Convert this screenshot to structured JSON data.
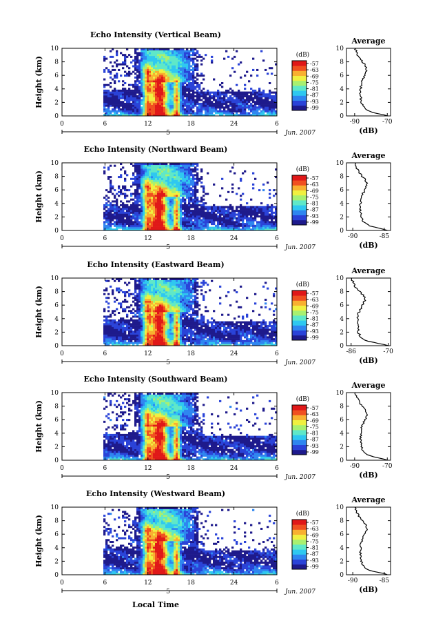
{
  "units_label": "(dB)",
  "average_title": "Average",
  "x_date_label": "Jun. 2007",
  "x_day_tick": "5",
  "colorbar_ticks": [
    "-57",
    "-63",
    "-69",
    "-75",
    "-81",
    "-87",
    "-93",
    "-99"
  ],
  "colors": {
    "scale": [
      "#1e1a8c",
      "#2a43d8",
      "#2f86f0",
      "#2fc8f0",
      "#5fe8c8",
      "#a8f070",
      "#f0f040",
      "#f8b030",
      "#f05020",
      "#e01818"
    ]
  },
  "chart_data": [
    {
      "type": "heatmap",
      "title": "Echo Intensity (Vertical Beam)",
      "ylabel": "Height (km)",
      "xlabel": "",
      "x_ticks": [
        "0",
        "6",
        "12",
        "18",
        "24",
        "6"
      ],
      "y_ticks": [
        "0",
        "2",
        "4",
        "6",
        "8",
        "10"
      ],
      "xlim": [
        0,
        30
      ],
      "ylim": [
        0,
        10
      ],
      "zlim": [
        -99,
        -57
      ],
      "average": {
        "xlabel": "(dB)",
        "x_ticks": [
          "-90",
          "-70"
        ],
        "xlim": [
          -95,
          -68
        ],
        "profile_peak_db": -70,
        "profile_low_db": -91
      }
    },
    {
      "type": "heatmap",
      "title": "Echo Intensity (Northward Beam)",
      "ylabel": "Height (km)",
      "xlabel": "",
      "x_ticks": [
        "0",
        "6",
        "12",
        "18",
        "24",
        "6"
      ],
      "y_ticks": [
        "0",
        "2",
        "4",
        "6",
        "8",
        "10"
      ],
      "xlim": [
        0,
        30
      ],
      "ylim": [
        0,
        10
      ],
      "zlim": [
        -99,
        -57
      ],
      "average": {
        "xlabel": "(dB)",
        "x_ticks": [
          "-90",
          "-85"
        ],
        "xlim": [
          -91,
          -84
        ],
        "profile_peak_db": -84.5,
        "profile_low_db": -90
      }
    },
    {
      "type": "heatmap",
      "title": "Echo Intensity (Eastward Beam)",
      "ylabel": "Height (km)",
      "xlabel": "",
      "x_ticks": [
        "0",
        "6",
        "12",
        "18",
        "24",
        "6"
      ],
      "y_ticks": [
        "0",
        "2",
        "4",
        "6",
        "8",
        "10"
      ],
      "xlim": [
        0,
        30
      ],
      "ylim": [
        0,
        10
      ],
      "zlim": [
        -99,
        -57
      ],
      "average": {
        "xlabel": "(dB)",
        "x_ticks": [
          "-86",
          "-70"
        ],
        "xlim": [
          -88,
          -69
        ],
        "profile_peak_db": -70,
        "profile_low_db": -87
      }
    },
    {
      "type": "heatmap",
      "title": "Echo Intensity (Southward Beam)",
      "ylabel": "Height (km)",
      "xlabel": "",
      "x_ticks": [
        "0",
        "6",
        "12",
        "18",
        "24",
        "6"
      ],
      "y_ticks": [
        "0",
        "2",
        "4",
        "6",
        "8",
        "10"
      ],
      "xlim": [
        0,
        30
      ],
      "ylim": [
        0,
        10
      ],
      "zlim": [
        -99,
        -57
      ],
      "average": {
        "xlabel": "(dB)",
        "x_ticks": [
          "-90",
          "-70"
        ],
        "xlim": [
          -95,
          -68
        ],
        "profile_peak_db": -70,
        "profile_low_db": -91
      }
    },
    {
      "type": "heatmap",
      "title": "Echo Intensity (Westward Beam)",
      "ylabel": "Height (km)",
      "xlabel": "Local Time",
      "x_ticks": [
        "0",
        "6",
        "12",
        "18",
        "24",
        "6"
      ],
      "y_ticks": [
        "0",
        "2",
        "4",
        "6",
        "8",
        "10"
      ],
      "xlim": [
        0,
        30
      ],
      "ylim": [
        0,
        10
      ],
      "zlim": [
        -99,
        -57
      ],
      "average": {
        "xlabel": "(dB)",
        "x_ticks": [
          "-90",
          "-85"
        ],
        "xlim": [
          -91,
          -84
        ],
        "profile_peak_db": -84.5,
        "profile_low_db": -90
      }
    }
  ]
}
